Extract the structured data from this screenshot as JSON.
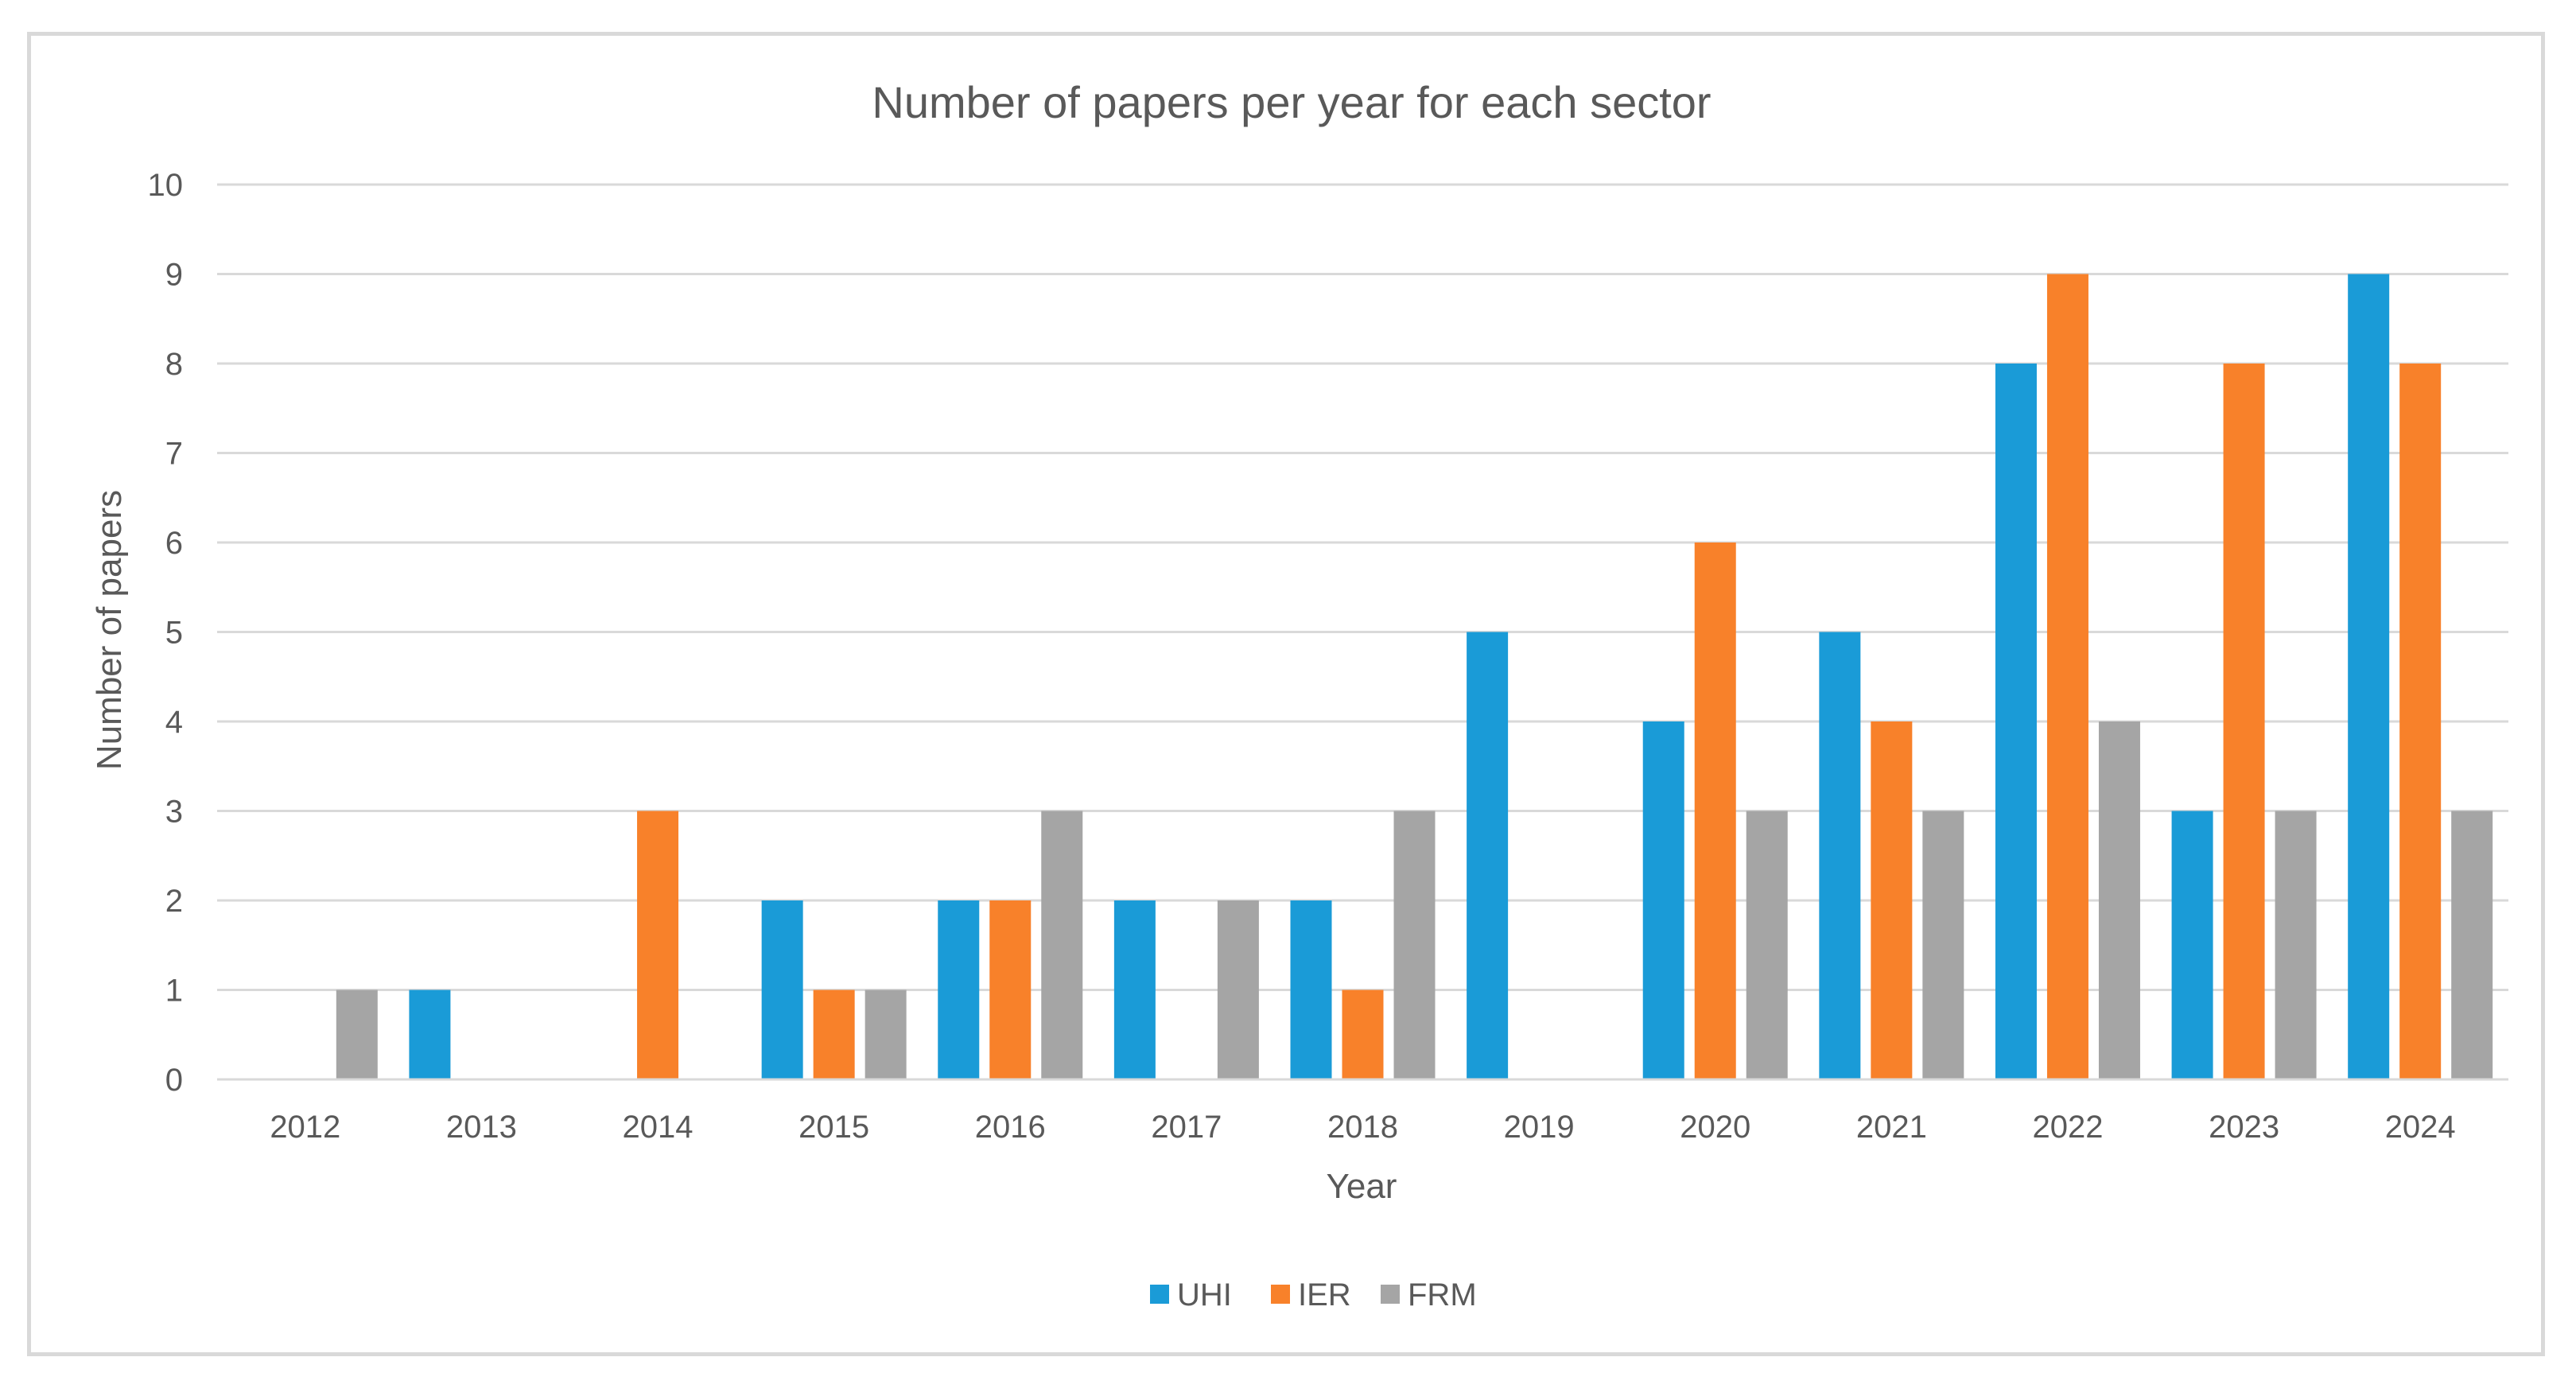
{
  "chart_data": {
    "type": "bar",
    "title": "Number of papers per year for each sector",
    "xlabel": "Year",
    "ylabel": "Number of papers",
    "ylim": [
      0,
      10
    ],
    "yticks": [
      0,
      1,
      2,
      3,
      4,
      5,
      6,
      7,
      8,
      9,
      10
    ],
    "grid": true,
    "legend_position": "bottom",
    "categories": [
      "2012",
      "2013",
      "2014",
      "2015",
      "2016",
      "2017",
      "2018",
      "2019",
      "2020",
      "2021",
      "2022",
      "2023",
      "2024"
    ],
    "series": [
      {
        "name": "UHI",
        "color": "#1a9bd7",
        "values": [
          0,
          1,
          0,
          2,
          2,
          2,
          2,
          5,
          4,
          5,
          8,
          3,
          9
        ]
      },
      {
        "name": "IER",
        "color": "#f8812a",
        "values": [
          0,
          0,
          3,
          1,
          2,
          0,
          1,
          0,
          6,
          4,
          9,
          8,
          8
        ]
      },
      {
        "name": "FRM",
        "color": "#a5a5a5",
        "values": [
          1,
          0,
          0,
          1,
          3,
          2,
          3,
          0,
          3,
          3,
          4,
          3,
          3
        ]
      }
    ],
    "gridline_color": "#d9d9d9",
    "text_color": "#595959"
  }
}
